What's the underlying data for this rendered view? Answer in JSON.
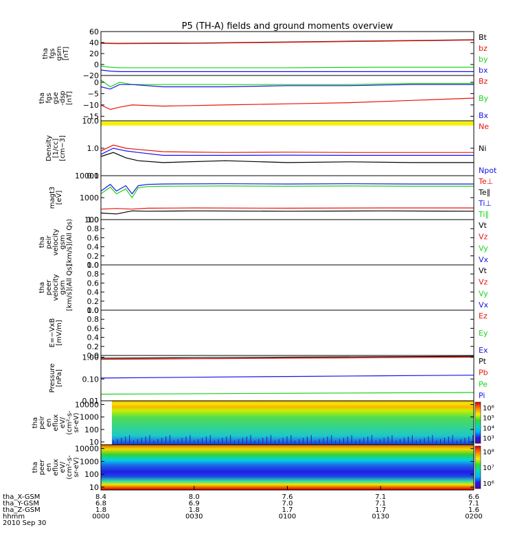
{
  "title": "P5 (TH-A) fields and ground moments overview",
  "colors": {
    "black": "#000000",
    "red": "#e8140a",
    "green": "#19d219",
    "blue": "#1414e6"
  },
  "panels": [
    {
      "id": "fgs-gsm",
      "ylabel": [
        "tha",
        "fgs",
        "gsm",
        "[nT]"
      ],
      "ylim": [
        -20,
        60
      ],
      "scale": "linear",
      "ticks": [
        {
          "v": 60,
          "t": "60"
        },
        {
          "v": 40,
          "t": "40"
        },
        {
          "v": 20,
          "t": "20"
        },
        {
          "v": 0,
          "t": "0"
        },
        {
          "v": -20,
          "t": "−20"
        }
      ],
      "legend": [
        {
          "t": "Bt",
          "c": "black"
        },
        {
          "t": "bz",
          "c": "red"
        },
        {
          "t": "by",
          "c": "green"
        },
        {
          "t": "bx",
          "c": "blue"
        }
      ],
      "series": [
        {
          "c": "black",
          "x": [
            0,
            5,
            30,
            60,
            90,
            120
          ],
          "y": [
            39,
            38.5,
            39,
            41,
            43,
            45
          ]
        },
        {
          "c": "red",
          "x": [
            0,
            5,
            30,
            60,
            90,
            120
          ],
          "y": [
            38.5,
            38,
            38.5,
            40.5,
            42.5,
            44.5
          ]
        },
        {
          "c": "green",
          "x": [
            0,
            3,
            6,
            30,
            60,
            90,
            120
          ],
          "y": [
            -3,
            -5,
            -6,
            -6,
            -6,
            -5,
            -5
          ]
        },
        {
          "c": "blue",
          "x": [
            0,
            3,
            6,
            30,
            60,
            90,
            120
          ],
          "y": [
            -10,
            -12,
            -13,
            -13,
            -13,
            -13,
            -13
          ]
        }
      ]
    },
    {
      "id": "fgs-gse",
      "ylabel": [
        "tha",
        "fgs",
        "gse",
        "-dsp",
        "[nT]"
      ],
      "ylim": [
        -17,
        3
      ],
      "scale": "linear",
      "ticks": [
        {
          "v": 0,
          "t": "0"
        },
        {
          "v": -5,
          "t": "−5"
        },
        {
          "v": -10,
          "t": "−10"
        },
        {
          "v": -15,
          "t": "−15"
        }
      ],
      "legend": [
        {
          "t": "Bz",
          "c": "red"
        },
        {
          "t": "By",
          "c": "green"
        },
        {
          "t": "Bx",
          "c": "blue"
        }
      ],
      "series": [
        {
          "c": "red",
          "x": [
            0,
            3,
            6,
            10,
            20,
            40,
            60,
            80,
            100,
            120
          ],
          "y": [
            -10,
            -12,
            -11,
            -10,
            -10.5,
            -10,
            -9.5,
            -9,
            -8,
            -7
          ]
        },
        {
          "c": "green",
          "x": [
            0,
            3,
            6,
            10,
            20,
            40,
            60,
            80,
            100,
            120
          ],
          "y": [
            1,
            -2,
            0,
            -1,
            -1,
            -1,
            -1,
            -1,
            -0.5,
            -0.5
          ]
        },
        {
          "c": "blue",
          "x": [
            0,
            3,
            6,
            10,
            20,
            40,
            60,
            80,
            100,
            120
          ],
          "y": [
            -2,
            -3,
            -1,
            -1,
            -2,
            -2,
            -1.5,
            -1.5,
            -1,
            -1
          ]
        }
      ]
    },
    {
      "id": "density",
      "ylabel": [
        "Density",
        "[1/cc]",
        "[cm−3]"
      ],
      "ylim": [
        0.1,
        10
      ],
      "scale": "log",
      "ticks": [
        {
          "v": 10,
          "t": "10.0"
        },
        {
          "v": 1,
          "t": "1.0"
        },
        {
          "v": 0.1,
          "t": "0.1"
        }
      ],
      "legend": [
        {
          "t": "Ne",
          "c": "red"
        },
        {
          "t": "Ni",
          "c": "black"
        },
        {
          "t": "Npot",
          "c": "blue"
        }
      ],
      "series": [
        {
          "c": "red",
          "x": [
            0,
            4,
            8,
            12,
            20,
            40,
            60,
            80,
            100,
            120
          ],
          "y": [
            0.8,
            1.3,
            1.0,
            0.9,
            0.75,
            0.7,
            0.72,
            0.7,
            0.7,
            0.7
          ]
        },
        {
          "c": "blue",
          "x": [
            0,
            4,
            8,
            12,
            20,
            40,
            60,
            80,
            100,
            120
          ],
          "y": [
            0.6,
            1.0,
            0.8,
            0.7,
            0.55,
            0.55,
            0.56,
            0.55,
            0.55,
            0.55
          ]
        },
        {
          "c": "black",
          "x": [
            0,
            4,
            8,
            12,
            20,
            40,
            60,
            80,
            100,
            120
          ],
          "y": [
            0.5,
            0.7,
            0.45,
            0.35,
            0.3,
            0.35,
            0.3,
            0.32,
            0.3,
            0.3
          ]
        }
      ]
    },
    {
      "id": "magt3",
      "ylabel": [
        "magt3",
        "[eV]"
      ],
      "ylim": [
        100,
        10000
      ],
      "scale": "log",
      "ticks": [
        {
          "v": 10000,
          "t": "10000"
        },
        {
          "v": 1000,
          "t": "1000"
        },
        {
          "v": 100,
          "t": "100"
        }
      ],
      "legend": [
        {
          "t": "Te⊥",
          "c": "red"
        },
        {
          "t": "Te∥",
          "c": "black"
        },
        {
          "t": "Ti⊥",
          "c": "blue"
        },
        {
          "t": "Ti∥",
          "c": "green"
        }
      ],
      "series": [
        {
          "c": "blue",
          "x": [
            0,
            3,
            5,
            8,
            10,
            12,
            15,
            20,
            40,
            60,
            80,
            100,
            120
          ],
          "y": [
            2000,
            4000,
            2000,
            3500,
            1500,
            3500,
            4000,
            4200,
            4300,
            4200,
            4300,
            4200,
            4200
          ]
        },
        {
          "c": "green",
          "x": [
            0,
            3,
            5,
            8,
            10,
            12,
            15,
            20,
            40,
            60,
            80,
            100,
            120
          ],
          "y": [
            1500,
            3000,
            1500,
            2500,
            1000,
            2800,
            3200,
            3300,
            3400,
            3300,
            3400,
            3300,
            3300
          ]
        },
        {
          "c": "red",
          "x": [
            0,
            5,
            10,
            15,
            30,
            60,
            90,
            120
          ],
          "y": [
            300,
            320,
            300,
            330,
            340,
            330,
            340,
            340
          ]
        },
        {
          "c": "black",
          "x": [
            0,
            5,
            10,
            15,
            30,
            60,
            90,
            120
          ],
          "y": [
            200,
            180,
            250,
            240,
            250,
            240,
            250,
            240
          ]
        }
      ]
    },
    {
      "id": "peir-velocity",
      "ylabel": [
        "tha",
        "peir",
        "velocity",
        "gsm",
        "[km/s](All Qs)"
      ],
      "ylim": [
        0,
        1
      ],
      "scale": "linear",
      "ticks": [
        {
          "v": 1,
          "t": "1.0"
        },
        {
          "v": 0.8,
          "t": "0.8"
        },
        {
          "v": 0.6,
          "t": "0.6"
        },
        {
          "v": 0.4,
          "t": "0.4"
        },
        {
          "v": 0.2,
          "t": "0.2"
        },
        {
          "v": 0,
          "t": "0.0"
        }
      ],
      "legend": [
        {
          "t": "Vt",
          "c": "black"
        },
        {
          "t": "Vz",
          "c": "red"
        },
        {
          "t": "Vy",
          "c": "green"
        },
        {
          "t": "Vx",
          "c": "blue"
        }
      ],
      "series": []
    },
    {
      "id": "peer-velocity",
      "ylabel": [
        "tha",
        "peer",
        "velocity",
        "gsm",
        "[km/s](All Qs)"
      ],
      "ylim": [
        0,
        1
      ],
      "scale": "linear",
      "ticks": [
        {
          "v": 1,
          "t": "1.0"
        },
        {
          "v": 0.8,
          "t": "0.8"
        },
        {
          "v": 0.6,
          "t": "0.6"
        },
        {
          "v": 0.4,
          "t": "0.4"
        },
        {
          "v": 0.2,
          "t": "0.2"
        },
        {
          "v": 0,
          "t": "0.0"
        }
      ],
      "legend": [
        {
          "t": "Vt",
          "c": "black"
        },
        {
          "t": "Vz",
          "c": "red"
        },
        {
          "t": "Vy",
          "c": "green"
        },
        {
          "t": "Vx",
          "c": "blue"
        }
      ],
      "series": []
    },
    {
      "id": "efield",
      "ylabel": [
        "E=−VxB",
        "[mV/m]"
      ],
      "ylim": [
        0,
        1
      ],
      "scale": "linear",
      "ticks": [
        {
          "v": 1,
          "t": "1.0"
        },
        {
          "v": 0.8,
          "t": "0.8"
        },
        {
          "v": 0.6,
          "t": "0.6"
        },
        {
          "v": 0.4,
          "t": "0.4"
        },
        {
          "v": 0.2,
          "t": "0.2"
        },
        {
          "v": 0,
          "t": "0.0"
        }
      ],
      "legend": [
        {
          "t": "Ez",
          "c": "red"
        },
        {
          "t": "Ey",
          "c": "green"
        },
        {
          "t": "Ex",
          "c": "blue"
        }
      ],
      "series": []
    },
    {
      "id": "pressure",
      "ylabel": [
        "Pressure",
        "[nPa]"
      ],
      "ylim": [
        0.01,
        1.2
      ],
      "scale": "log",
      "ticks": [
        {
          "v": 1,
          "t": "1.00"
        },
        {
          "v": 0.1,
          "t": "0.10"
        },
        {
          "v": 0.01,
          "t": "0.01"
        }
      ],
      "legend": [
        {
          "t": "Pt",
          "c": "black"
        },
        {
          "t": "Pb",
          "c": "red"
        },
        {
          "t": "Pe",
          "c": "green"
        },
        {
          "t": "Pi",
          "c": "blue"
        }
      ],
      "series": [
        {
          "c": "black",
          "x": [
            0,
            30,
            60,
            90,
            120
          ],
          "y": [
            0.9,
            0.95,
            1.0,
            1.05,
            1.1
          ]
        },
        {
          "c": "red",
          "x": [
            0,
            30,
            60,
            90,
            120
          ],
          "y": [
            0.8,
            0.85,
            0.9,
            0.95,
            1.0
          ]
        },
        {
          "c": "blue",
          "x": [
            0,
            30,
            60,
            90,
            120
          ],
          "y": [
            0.11,
            0.12,
            0.13,
            0.14,
            0.15
          ]
        },
        {
          "c": "green",
          "x": [
            0,
            30,
            60,
            90,
            120
          ],
          "y": [
            0.02,
            0.021,
            0.022,
            0.023,
            0.024
          ]
        }
      ]
    },
    {
      "id": "peir-eflux",
      "ylabel": [
        "tha",
        "peir",
        "en",
        "eflux",
        "eV/",
        "(cm²-s-",
        "sr-eV)"
      ],
      "ylim": [
        6,
        20000
      ],
      "scale": "log",
      "ticks": [
        {
          "v": 10000,
          "t": "10000"
        },
        {
          "v": 1000,
          "t": "1000"
        },
        {
          "v": 100,
          "t": "100"
        },
        {
          "v": 10,
          "t": "10"
        }
      ],
      "legend": [],
      "series": [],
      "colorbar": [
        {
          "t": "10⁶"
        },
        {
          "t": "10⁵"
        },
        {
          "t": "10⁴"
        },
        {
          "t": "10³"
        }
      ]
    },
    {
      "id": "peer-eflux",
      "ylabel": [
        "tha",
        "peer",
        "en",
        "eflux",
        "eV/",
        "(cm²-s-",
        "sr-eV)"
      ],
      "ylim": [
        6,
        20000
      ],
      "scale": "log",
      "ticks": [
        {
          "v": 10000,
          "t": "10000"
        },
        {
          "v": 1000,
          "t": "1000"
        },
        {
          "v": 100,
          "t": "100"
        },
        {
          "v": 10,
          "t": "10"
        }
      ],
      "legend": [],
      "series": [],
      "colorbar": [
        {
          "t": "10⁸"
        },
        {
          "t": "10⁷"
        },
        {
          "t": "10⁶"
        }
      ]
    }
  ],
  "xaxis": {
    "range_minutes": [
      0,
      120
    ],
    "ticks_minutes": [
      0,
      30,
      60,
      90,
      120
    ],
    "rows": [
      {
        "label": "tha_X-GSM",
        "values": [
          "8.4",
          "8.0",
          "7.6",
          "7.1",
          "6.6"
        ]
      },
      {
        "label": "tha_Y-GSM",
        "values": [
          "6.8",
          "6.9",
          "7.0",
          "7.1",
          "7.1"
        ]
      },
      {
        "label": "tha_Z-GSM",
        "values": [
          "1.8",
          "1.8",
          "1.7",
          "1.7",
          "1.6"
        ]
      },
      {
        "label": "hhmm",
        "values": [
          "0000",
          "0030",
          "0100",
          "0130",
          "0200"
        ]
      }
    ],
    "date": "2010 Sep 30"
  }
}
